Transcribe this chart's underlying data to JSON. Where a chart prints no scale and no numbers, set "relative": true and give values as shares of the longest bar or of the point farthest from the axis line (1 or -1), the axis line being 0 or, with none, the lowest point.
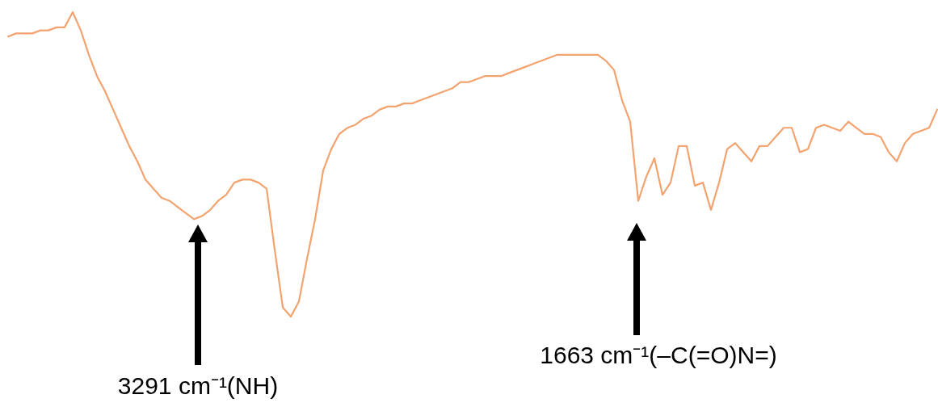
{
  "chart_data": {
    "type": "line",
    "relative": true,
    "categories": [
      null,
      null,
      null,
      null,
      null,
      null,
      null,
      null,
      null,
      null,
      null,
      null,
      null,
      null,
      null,
      null,
      null,
      null,
      null,
      null,
      null,
      null,
      null,
      null,
      null,
      null,
      null,
      null,
      null,
      null,
      null,
      null,
      null,
      null,
      null,
      null,
      null,
      null,
      null,
      null,
      null,
      null,
      null,
      null,
      null,
      null,
      null,
      null,
      null,
      null,
      null,
      null,
      null,
      null,
      null,
      null,
      null,
      null,
      null,
      null,
      null,
      null,
      null,
      null,
      null,
      null,
      null,
      null,
      null,
      null,
      null,
      null,
      null,
      null,
      null,
      null,
      null,
      null,
      null,
      null,
      null,
      null,
      null,
      null,
      null,
      null,
      null,
      null,
      null,
      null,
      null,
      null,
      null,
      null,
      null,
      null,
      null,
      null,
      null,
      null,
      null,
      null,
      null,
      null,
      null,
      null,
      null,
      null,
      null,
      null,
      null,
      null,
      null,
      null,
      null,
      null
    ],
    "series": [
      {
        "color": "#f2a36f",
        "values": [
          0.92,
          0.93,
          0.93,
          0.93,
          0.94,
          0.94,
          0.95,
          0.95,
          1,
          0.94,
          0.86,
          0.79,
          0.74,
          0.68,
          0.62,
          0.56,
          0.51,
          0.45,
          0.42,
          0.39,
          0.38,
          0.36,
          0.34,
          0.32,
          0.33,
          0.35,
          0.38,
          0.4,
          0.44,
          0.45,
          0.45,
          0.44,
          0.42,
          0.22,
          0.03,
          0,
          0.05,
          0.19,
          0.32,
          0.48,
          0.55,
          0.6,
          0.62,
          0.63,
          0.65,
          0.66,
          0.68,
          0.69,
          0.69,
          0.7,
          0.7,
          0.71,
          0.72,
          0.73,
          0.74,
          0.75,
          0.77,
          0.77,
          0.78,
          0.79,
          0.79,
          0.79,
          0.8,
          0.81,
          0.82,
          0.83,
          0.84,
          0.85,
          0.86,
          0.86,
          0.86,
          0.86,
          0.86,
          0.86,
          0.84,
          0.81,
          0.71,
          0.64,
          0.38,
          0.46,
          0.52,
          0.4,
          0.44,
          0.56,
          0.56,
          0.43,
          0.44,
          0.35,
          0.44,
          0.55,
          0.57,
          0.54,
          0.51,
          0.56,
          0.56,
          0.59,
          0.62,
          0.62,
          0.54,
          0.55,
          0.62,
          0.63,
          0.62,
          0.61,
          0.64,
          0.62,
          0.6,
          0.6,
          0.59,
          0.54,
          0.51,
          0.57,
          0.6,
          0.61,
          0.62,
          0.68
        ]
      }
    ],
    "annotations": [
      "3291 cm⁻¹(NH)",
      "1663 cm⁻¹(–C(=O)N=)"
    ]
  }
}
